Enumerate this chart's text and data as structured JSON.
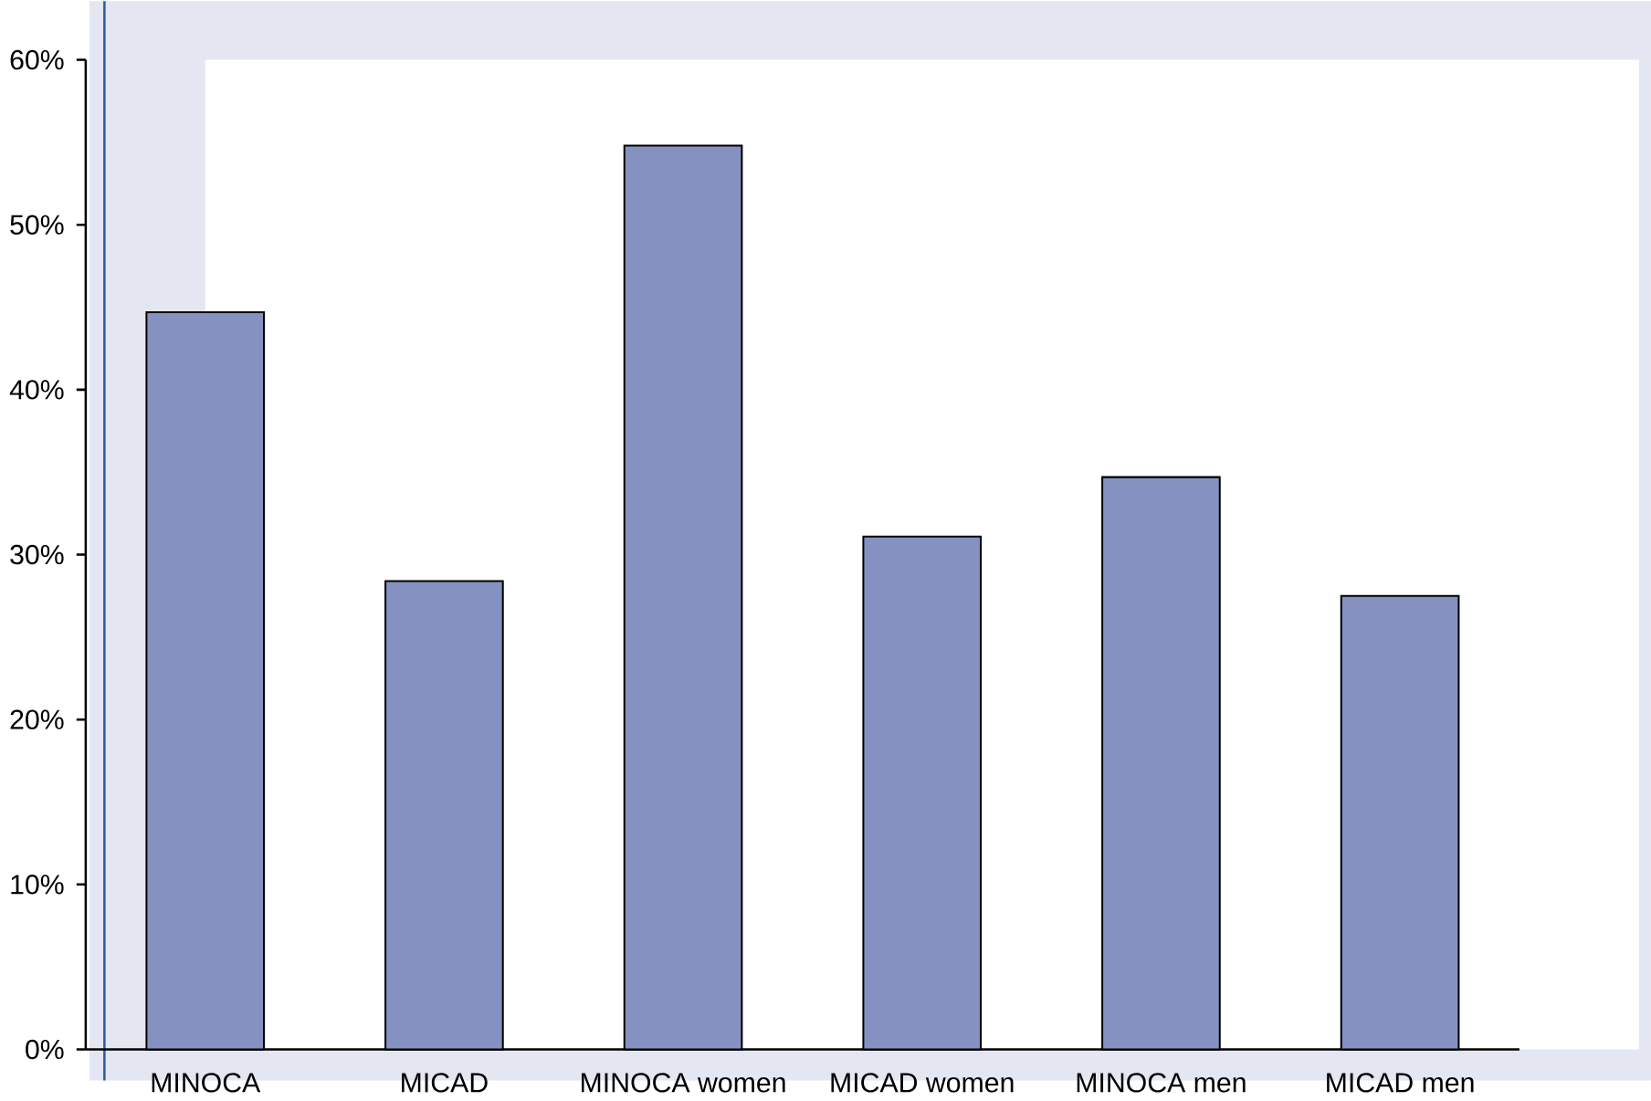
{
  "chart_data": {
    "type": "bar",
    "categories": [
      "MINOCA",
      "MICAD",
      "MINOCA women",
      "MICAD women",
      "MINOCA men",
      "MICAD men"
    ],
    "values": [
      44.7,
      28.4,
      54.8,
      31.1,
      34.7,
      27.5
    ],
    "color": "#8592c1",
    "ylim": [
      0,
      60
    ],
    "yticks": [
      {
        "value": 0,
        "label": "0%"
      },
      {
        "value": 10,
        "label": "10%"
      },
      {
        "value": 20,
        "label": "20%"
      },
      {
        "value": 30,
        "label": "30%"
      },
      {
        "value": 40,
        "label": "40%"
      },
      {
        "value": 50,
        "label": "50%"
      },
      {
        "value": 60,
        "label": "60%"
      }
    ],
    "grid": false
  }
}
